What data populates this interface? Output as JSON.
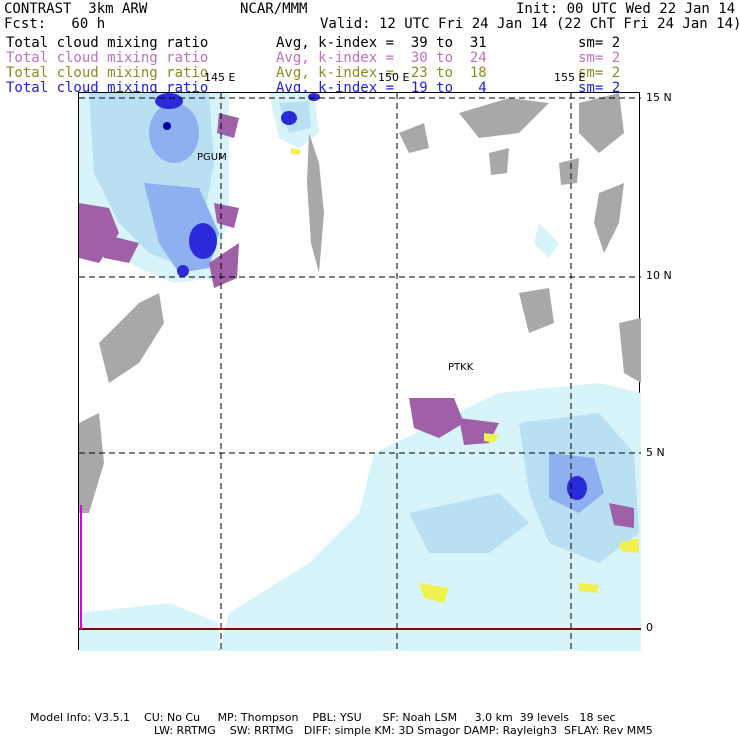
{
  "header": {
    "model": "CONTRAST  3km ARW",
    "center": "NCAR/MMM",
    "init": "Init: 00 UTC Wed 22 Jan 14",
    "fcst": "Fcst:   60 h",
    "valid": "Valid: 12 UTC Fri 24 Jan 14 (22 ChT Fri 24 Jan 14)"
  },
  "colors": {
    "row1": "#000000",
    "row2": "#c070c0",
    "row3": "#8c8c1e",
    "row4": "#2020e0"
  },
  "legend_rows": [
    {
      "field": "Total cloud mixing ratio",
      "stat": "Avg, k-index =  39 to  31",
      "sm": "sm= 2"
    },
    {
      "field": "Total cloud mixing ratio",
      "stat": "Avg, k-index =  30 to  24",
      "sm": "sm= 2"
    },
    {
      "field": "Total cloud mixing ratio",
      "stat": "Avg, k-index =  23 to  18",
      "sm": "sm= 2"
    },
    {
      "field": "Total cloud mixing ratio",
      "stat": "Avg, k-index =  19 to   4",
      "sm": "sm= 2"
    }
  ],
  "map": {
    "lon_labels": [
      "145 E",
      "150 E",
      "155 E"
    ],
    "lat_labels": [
      "15 N",
      "10 N",
      "5 N",
      "0"
    ],
    "stations": [
      "PGUM",
      "PTKK"
    ]
  },
  "footer": {
    "line1": "Model Info: V3.5.1    CU: No Cu     MP: Thompson    PBL: YSU      SF: Noah LSM     3.0 km  39 levels   18 sec",
    "line2": "LW: RRTMG    SW: RRTMG   DIFF: simple KM: 3D Smagor DAMP: Rayleigh3  SFLAY: Rev MM5"
  }
}
